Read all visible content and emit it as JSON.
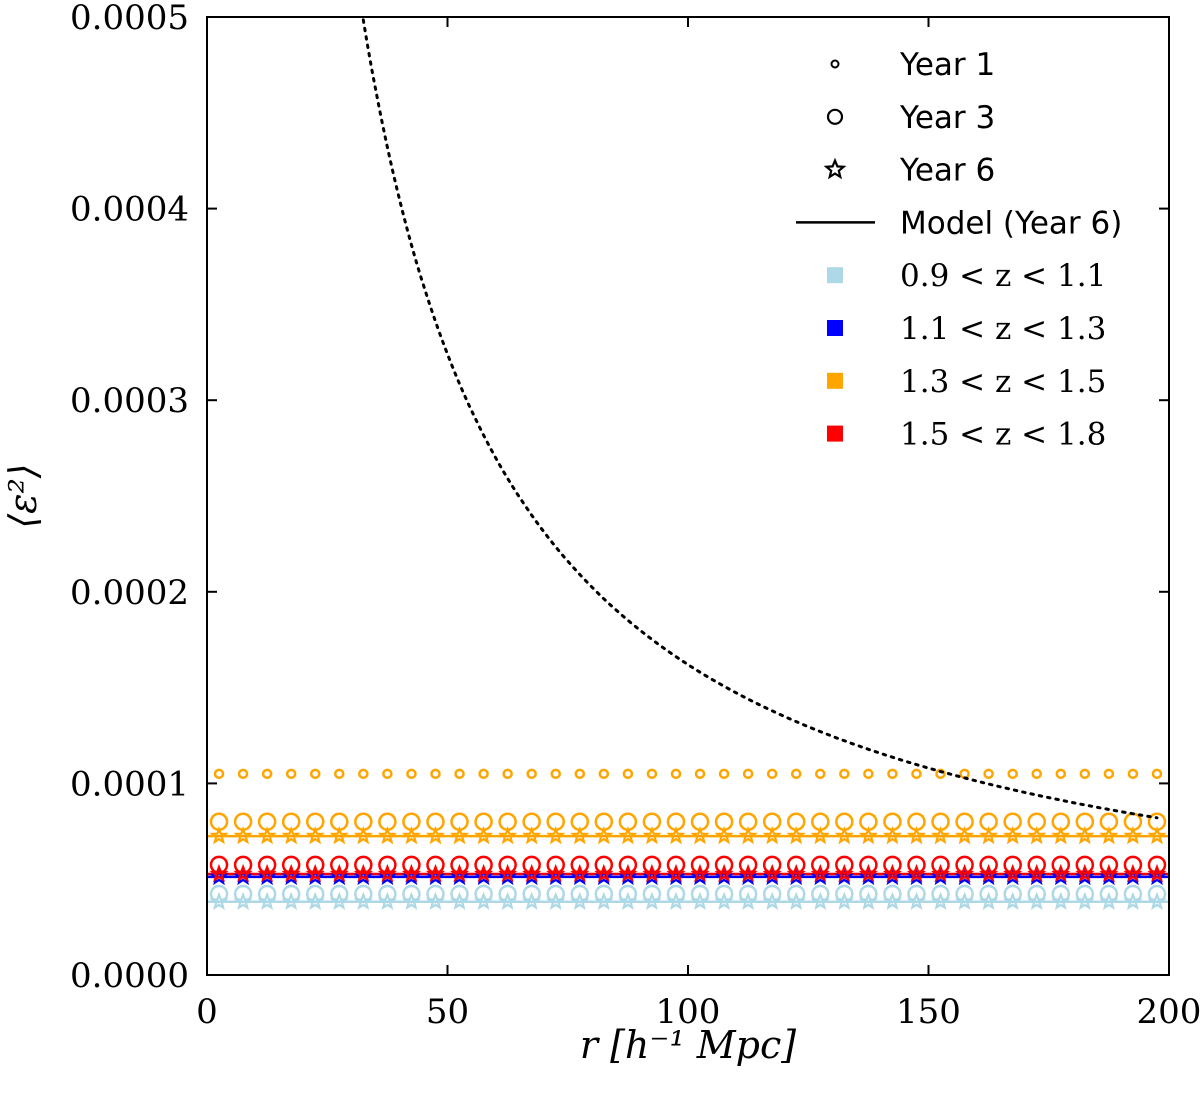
{
  "chart_data": {
    "type": "scatter",
    "xlabel": "r [h⁻¹ Mpc]",
    "ylabel": "⟨ε²⟩",
    "xlim": [
      0,
      200
    ],
    "ylim": [
      0,
      0.0005
    ],
    "xticks": [
      "0",
      "50",
      "100",
      "150",
      "200"
    ],
    "yticks": [
      "0.0000",
      "0.0001",
      "0.0002",
      "0.0003",
      "0.0004",
      "0.0005"
    ],
    "grid": false,
    "legend_position": "top-right",
    "legend": {
      "markers": [
        {
          "label": "Year 1",
          "marker": "small-circle"
        },
        {
          "label": "Year 3",
          "marker": "circle"
        },
        {
          "label": "Year 6",
          "marker": "star"
        },
        {
          "label": "Model (Year 6)",
          "marker": "line"
        }
      ],
      "bins": [
        {
          "label": "0.9 < z < 1.1",
          "color": "#add8e6"
        },
        {
          "label": "1.1 < z < 1.3",
          "color": "#0000ff"
        },
        {
          "label": "1.3 < z < 1.5",
          "color": "#ffa500"
        },
        {
          "label": "1.5 < z < 1.8",
          "color": "#ff0000"
        }
      ]
    },
    "r": [
      2.5,
      7.5,
      12.5,
      17.5,
      22.5,
      27.5,
      32.5,
      37.5,
      42.5,
      47.5,
      52.5,
      57.5,
      62.5,
      67.5,
      72.5,
      77.5,
      82.5,
      87.5,
      92.5,
      97.5,
      102.5,
      107.5,
      112.5,
      117.5,
      122.5,
      127.5,
      132.5,
      137.5,
      142.5,
      147.5,
      152.5,
      157.5,
      162.5,
      167.5,
      172.5,
      177.5,
      182.5,
      187.5,
      192.5,
      197.5
    ],
    "series": [
      {
        "bin": "0.9 < z < 1.1",
        "color": "#add8e6",
        "year1": null,
        "year3": 4.23e-05,
        "year6": 3.82e-05,
        "model_year6": 3.82e-05
      },
      {
        "bin": "1.1 < z < 1.3",
        "color": "#0000ff",
        "year1": null,
        "year3": null,
        "year6": 5.12e-05,
        "model_year6": 5.12e-05
      },
      {
        "bin": "1.3 < z < 1.5",
        "color": "#ffa500",
        "year1": 0.000105,
        "year3": 8e-05,
        "year6": 7.25e-05,
        "model_year6": 7.25e-05
      },
      {
        "bin": "1.5 < z < 1.8",
        "color": "#ff0000",
        "year1": null,
        "year3": 5.75e-05,
        "year6": 5.27e-05,
        "model_year6": 5.27e-05
      }
    ],
    "dotted_curve": {
      "form": "A / r",
      "A": 0.0162,
      "color": "#000000"
    }
  }
}
